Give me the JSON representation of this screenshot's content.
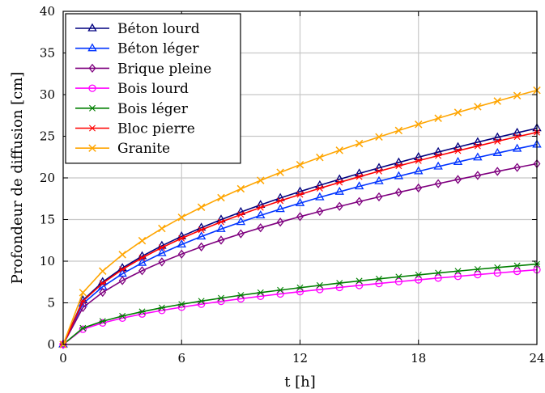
{
  "chart_data": {
    "type": "line",
    "title": "",
    "xlabel": "t [h]",
    "ylabel": "Profondeur de diffusion [cm]",
    "xlim": [
      0,
      24
    ],
    "ylim": [
      0,
      40
    ],
    "xticks": [
      0,
      6,
      12,
      18,
      24
    ],
    "yticks": [
      0,
      5,
      10,
      15,
      20,
      25,
      30,
      35,
      40
    ],
    "grid": true,
    "legend": "top-left",
    "x": [
      0,
      1,
      2,
      3,
      4,
      5,
      6,
      7,
      8,
      9,
      10,
      11,
      12,
      13,
      14,
      15,
      16,
      17,
      18,
      19,
      20,
      21,
      22,
      23,
      24
    ],
    "series": [
      {
        "name": "Béton lourd",
        "color": "#00007f",
        "marker": "triangle",
        "coef": 5.3
      },
      {
        "name": "Béton léger",
        "color": "#0033ff",
        "marker": "triangle",
        "coef": 4.9
      },
      {
        "name": "Brique pleine",
        "color": "#7f007f",
        "marker": "diamond",
        "coef": 4.43
      },
      {
        "name": "Bois lourd",
        "color": "#ff00ff",
        "marker": "circle",
        "coef": 1.83
      },
      {
        "name": "Bois léger",
        "color": "#007f00",
        "marker": "star",
        "coef": 1.97
      },
      {
        "name": "Bloc pierre",
        "color": "#ff0000",
        "marker": "star",
        "coef": 5.2
      },
      {
        "name": "Granite",
        "color": "#ffa500",
        "marker": "x",
        "coef": 6.23
      }
    ]
  }
}
